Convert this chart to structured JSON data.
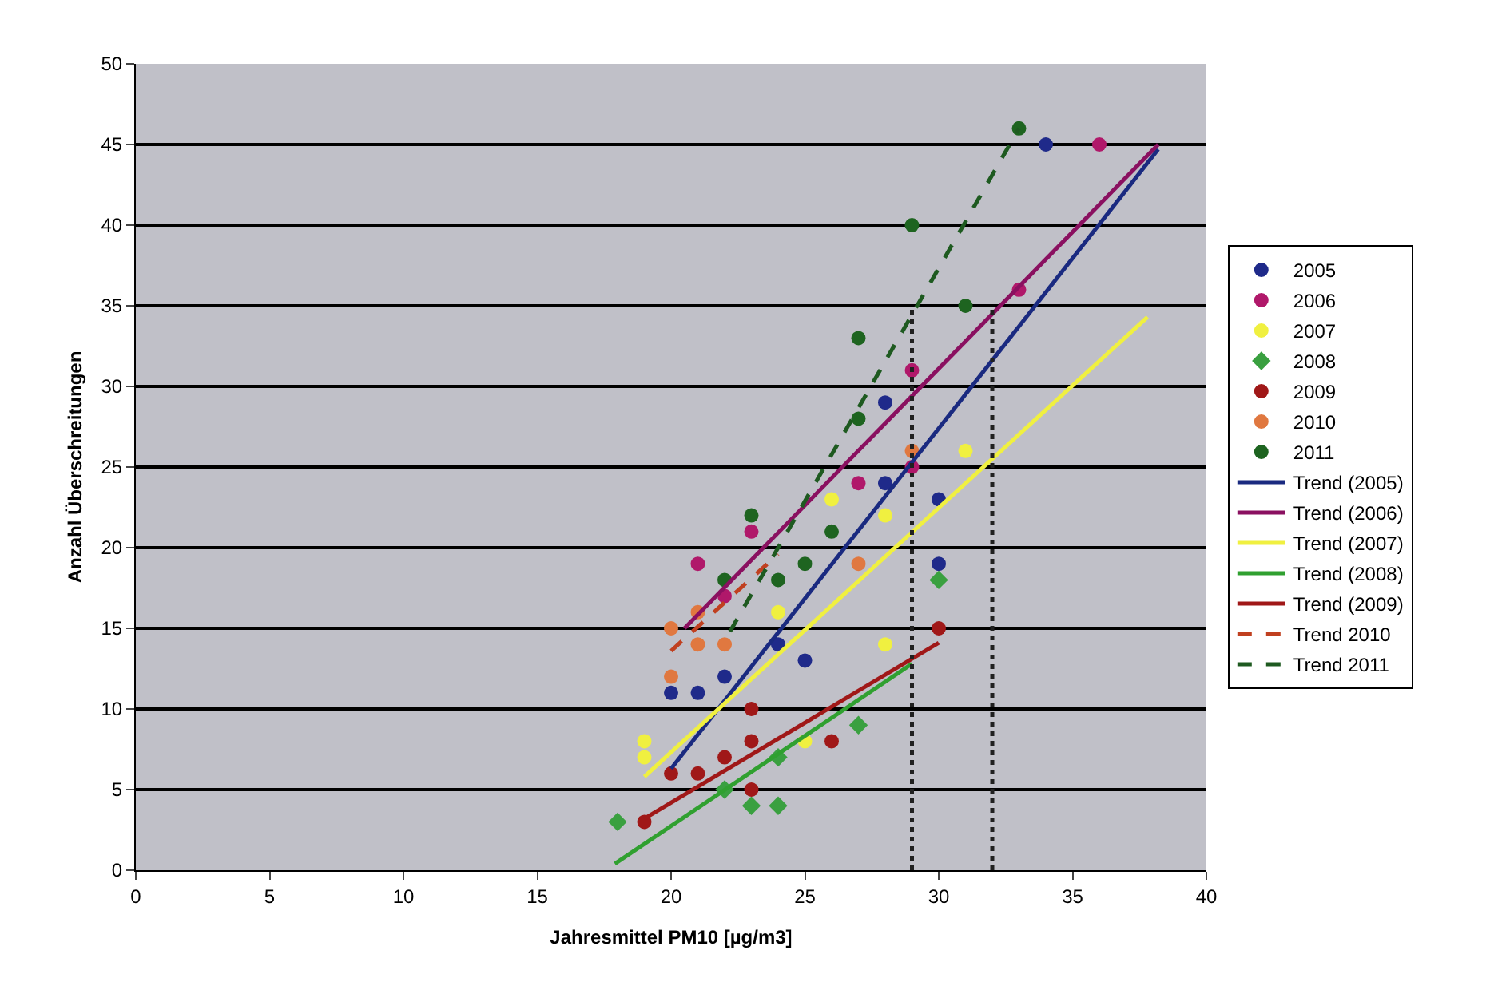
{
  "chart_data": {
    "type": "scatter",
    "xlabel": "Jahresmittel PM10 [µg/m3]",
    "ylabel": "Anzahl Überschreitungen",
    "xlim": [
      0,
      40
    ],
    "xticks": [
      0,
      5,
      10,
      15,
      20,
      25,
      30,
      35,
      40
    ],
    "ylim": [
      0,
      50
    ],
    "yticks": [
      0,
      5,
      10,
      15,
      20,
      25,
      30,
      35,
      40,
      45,
      50
    ],
    "grid": "y",
    "legend": "right",
    "marker": "circle",
    "series": [
      {
        "name": "2005",
        "color": "#1f2a8a",
        "x": [
          20,
          21,
          22,
          24,
          25,
          28,
          28,
          30,
          30,
          34
        ],
        "values": [
          11,
          11,
          12,
          14,
          13,
          24,
          29,
          23,
          19,
          45
        ]
      },
      {
        "name": "2006",
        "color": "#b0186a",
        "x": [
          21,
          22,
          23,
          27,
          29,
          29,
          33,
          36
        ],
        "values": [
          19,
          17,
          21,
          24,
          25,
          31,
          36,
          45
        ]
      },
      {
        "name": "2007",
        "color": "#f0f040",
        "x": [
          19,
          19,
          24,
          25,
          26,
          28,
          28,
          31
        ],
        "values": [
          8,
          7,
          16,
          8,
          23,
          22,
          14,
          26
        ]
      },
      {
        "name": "2008",
        "color": "#3aa040",
        "marker": "diamond",
        "x": [
          18,
          22,
          23,
          24,
          24,
          27,
          30
        ],
        "values": [
          3,
          5,
          4,
          4,
          7,
          9,
          18
        ]
      },
      {
        "name": "2009",
        "color": "#a01818",
        "x": [
          19,
          20,
          21,
          22,
          23,
          23,
          23,
          26,
          30
        ],
        "values": [
          3,
          6,
          6,
          7,
          8,
          10,
          5,
          8,
          15
        ]
      },
      {
        "name": "2010",
        "color": "#e07840",
        "x": [
          20,
          20,
          21,
          21,
          22,
          27,
          29
        ],
        "values": [
          15,
          12,
          16,
          14,
          14,
          19,
          26
        ]
      },
      {
        "name": "2011",
        "color": "#1e6420",
        "x": [
          22,
          23,
          24,
          25,
          26,
          27,
          27,
          29,
          31,
          33
        ],
        "values": [
          18,
          22,
          18,
          19,
          21,
          28,
          33,
          40,
          35,
          46
        ]
      },
      {
        "name": "Trend (2005)",
        "type": "line",
        "marker": "none",
        "color": "#1a2a80",
        "x": [
          20,
          38.2
        ],
        "values": [
          6.3,
          44.7
        ]
      },
      {
        "name": "Trend (2006)",
        "type": "line",
        "marker": "none",
        "color": "#8a1060",
        "x": [
          20.5,
          38.2
        ],
        "values": [
          15,
          45
        ]
      },
      {
        "name": "Trend (2007)",
        "type": "line",
        "marker": "none",
        "color": "#f0f040",
        "x": [
          19,
          37.8
        ],
        "values": [
          5.8,
          34.3
        ]
      },
      {
        "name": "Trend (2008)",
        "type": "line",
        "marker": "none",
        "color": "#30a030",
        "x": [
          17.9,
          29
        ],
        "values": [
          0.4,
          12.8
        ]
      },
      {
        "name": "Trend (2009)",
        "type": "line",
        "marker": "none",
        "color": "#a01818",
        "x": [
          19,
          30
        ],
        "values": [
          3.2,
          14.1
        ]
      },
      {
        "name": "Trend 2010",
        "type": "line",
        "marker": "none",
        "color": "#c04020",
        "line_style": "dashed",
        "x": [
          20,
          24
        ],
        "values": [
          13.6,
          19.6
        ]
      },
      {
        "name": "Trend 2011",
        "type": "line",
        "marker": "none",
        "color": "#1e5a20",
        "line_style": "dashed",
        "x": [
          22.2,
          33
        ],
        "values": [
          14.8,
          46
        ]
      },
      {
        "type": "line",
        "marker": "none",
        "color": "#202020",
        "line_style": "dotted",
        "x": [
          29,
          29
        ],
        "values": [
          0,
          35
        ]
      },
      {
        "type": "line",
        "marker": "none",
        "color": "#202020",
        "line_style": "dotted",
        "x": [
          32,
          32
        ],
        "values": [
          0,
          35
        ]
      }
    ]
  }
}
